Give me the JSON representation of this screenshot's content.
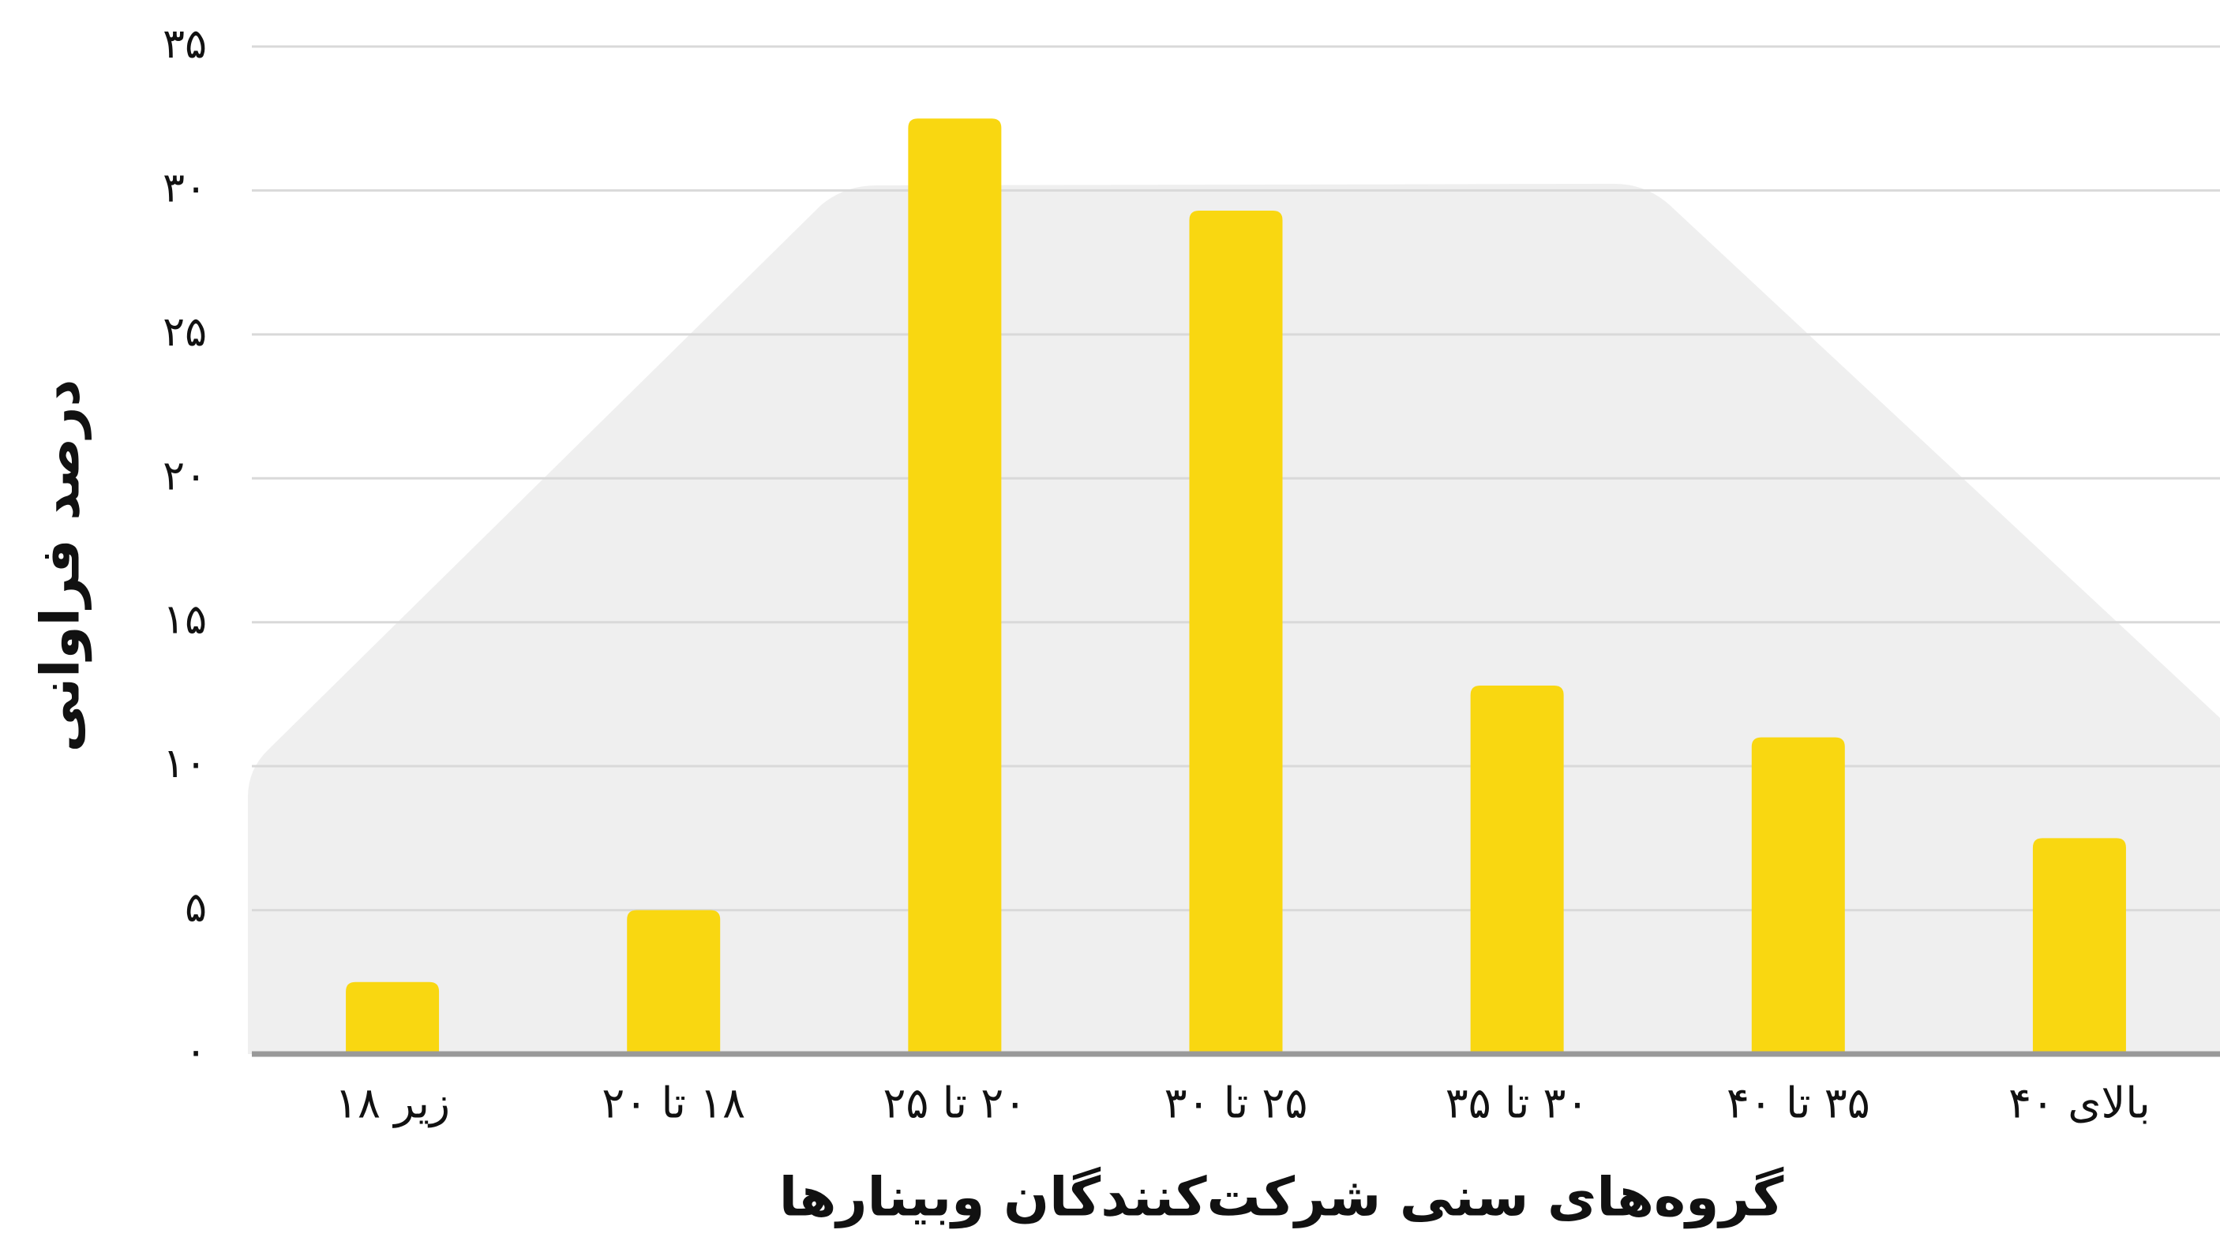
{
  "chart_data": {
    "type": "bar",
    "x_label": "گروه‌های سنی شرکت‌کنندگان وبینارها",
    "y_label": "درصد فراوانی",
    "categories": [
      "زیر ۱۸",
      "۱۸ تا ۲۰",
      "۲۰ تا ۲۵",
      "۲۵ تا ۳۰",
      "۳۰ تا ۳۵",
      "۳۵ تا ۴۰",
      "بالای ۴۰"
    ],
    "values": [
      2.5,
      5,
      32.5,
      29.3,
      12.8,
      11,
      7.5
    ],
    "color": "#f9d711",
    "ylim": [
      0,
      35
    ],
    "yticks": [
      {
        "value": 0,
        "label": "۰"
      },
      {
        "value": 5,
        "label": "۵"
      },
      {
        "value": 10,
        "label": "۱۰"
      },
      {
        "value": 15,
        "label": "۱۵"
      },
      {
        "value": 20,
        "label": "۲۰"
      },
      {
        "value": 25,
        "label": "۲۵"
      },
      {
        "value": 30,
        "label": "۳۰"
      },
      {
        "value": 35,
        "label": "۳۵"
      }
    ],
    "grid": true
  }
}
